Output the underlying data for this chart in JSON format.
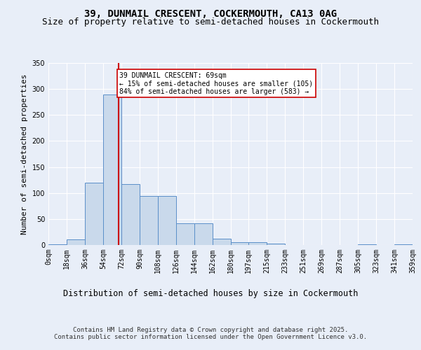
{
  "title1": "39, DUNMAIL CRESCENT, COCKERMOUTH, CA13 0AG",
  "title2": "Size of property relative to semi-detached houses in Cockermouth",
  "xlabel": "Distribution of semi-detached houses by size in Cockermouth",
  "ylabel": "Number of semi-detached properties",
  "bin_edges": [
    0,
    18,
    36,
    54,
    72,
    90,
    108,
    126,
    144,
    162,
    180,
    197,
    215,
    233,
    251,
    269,
    287,
    305,
    323,
    341,
    359
  ],
  "bar_heights": [
    2,
    11,
    120,
    290,
    117,
    94,
    94,
    42,
    42,
    12,
    5,
    5,
    3,
    0,
    0,
    0,
    0,
    1,
    0,
    2
  ],
  "bar_color": "#c9d9eb",
  "bar_edge_color": "#5b8fc9",
  "property_size": 69,
  "vline_color": "#cc0000",
  "annotation_text": "39 DUNMAIL CRESCENT: 69sqm\n← 15% of semi-detached houses are smaller (105)\n84% of semi-detached houses are larger (583) →",
  "annotation_box_color": "#ffffff",
  "annotation_box_edge": "#cc0000",
  "ylim": [
    0,
    350
  ],
  "yticks": [
    0,
    50,
    100,
    150,
    200,
    250,
    300,
    350
  ],
  "background_color": "#e8eef8",
  "footer1": "Contains HM Land Registry data © Crown copyright and database right 2025.",
  "footer2": "Contains public sector information licensed under the Open Government Licence v3.0.",
  "title1_fontsize": 10,
  "title2_fontsize": 9,
  "xlabel_fontsize": 8.5,
  "ylabel_fontsize": 8,
  "tick_fontsize": 7,
  "footer_fontsize": 6.5
}
